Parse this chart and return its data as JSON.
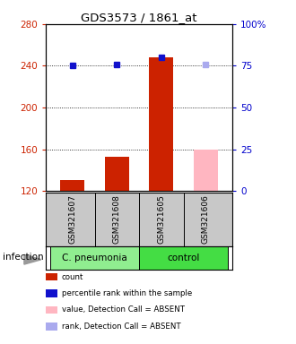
{
  "title": "GDS3573 / 1861_at",
  "samples": [
    "GSM321607",
    "GSM321608",
    "GSM321605",
    "GSM321606"
  ],
  "group_colors": {
    "C. pneumonia": "#90EE90",
    "control": "#44DD44"
  },
  "bar_values": [
    130,
    153,
    248,
    160
  ],
  "bar_colors": [
    "#CC2200",
    "#CC2200",
    "#CC2200",
    "#FFB6C1"
  ],
  "dot_values": [
    240,
    241,
    248,
    241
  ],
  "dot_colors": [
    "#1111CC",
    "#1111CC",
    "#1111CC",
    "#AAAAEE"
  ],
  "ylim_left": [
    120,
    280
  ],
  "ylim_right": [
    0,
    100
  ],
  "yticks_left": [
    120,
    160,
    200,
    240,
    280
  ],
  "yticks_right": [
    0,
    25,
    50,
    75,
    100
  ],
  "ytick_labels_right": [
    "0",
    "25",
    "50",
    "75",
    "100%"
  ],
  "legend_items": [
    {
      "label": "count",
      "color": "#CC2200"
    },
    {
      "label": "percentile rank within the sample",
      "color": "#1111CC"
    },
    {
      "label": "value, Detection Call = ABSENT",
      "color": "#FFB6C1"
    },
    {
      "label": "rank, Detection Call = ABSENT",
      "color": "#AAAAEE"
    }
  ],
  "group_label": "infection",
  "sample_bg": "#c8c8c8"
}
